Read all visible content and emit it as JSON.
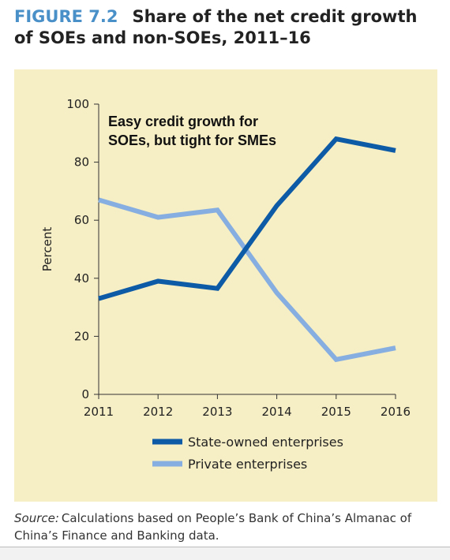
{
  "figure": {
    "number": "FIGURE 7.2",
    "title": "Share of the net credit growth of SOEs and non-SOEs, 2011–16",
    "source_label": "Source:",
    "source_text": "Calculations based on People’s Bank of China’s Almanac of China’s Finance and Banking data."
  },
  "colors": {
    "panel_background": "#f6eec4",
    "figure_number": "#4a90c8",
    "soe_line": "#0d5aa7",
    "private_line": "#86aee0"
  },
  "chart_data": {
    "type": "line",
    "x": [
      "2011",
      "2012",
      "2013",
      "2014",
      "2015",
      "2016"
    ],
    "series": [
      {
        "name": "State-owned enterprises",
        "values": [
          33,
          39,
          36.5,
          65,
          88,
          84
        ]
      },
      {
        "name": "Private enterprises",
        "values": [
          67,
          61,
          63.5,
          35,
          12,
          16
        ]
      }
    ],
    "ylabel": "Percent",
    "xlabel": "",
    "ylim": [
      0,
      100
    ],
    "yticks": [
      0,
      20,
      40,
      60,
      80,
      100
    ],
    "annotation": [
      "Easy credit growth for",
      "SOEs, but tight for SMEs"
    ],
    "grid": false,
    "legend_position": "bottom"
  }
}
